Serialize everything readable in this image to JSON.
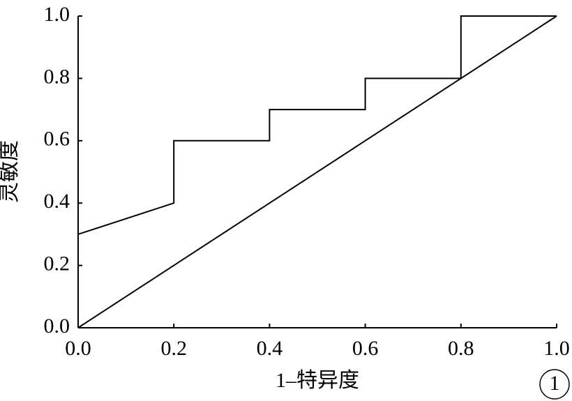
{
  "chart_data": {
    "type": "line",
    "x_label": "1–特异度",
    "y_label": "灵敏度",
    "panel_label": "1",
    "series": [
      {
        "color": "#000000",
        "x": [
          0,
          0.2,
          0.2,
          0.4,
          0.4,
          0.6,
          0.6,
          0.8,
          0.8,
          1
        ],
        "values": [
          0.3,
          0.4,
          0.6,
          0.6,
          0.7,
          0.7,
          0.8,
          0.8,
          1,
          1
        ]
      },
      {
        "color": "#000000",
        "x": [
          0,
          1
        ],
        "values": [
          0,
          1
        ]
      }
    ],
    "xlim": [
      0,
      1
    ],
    "ylim": [
      0,
      1
    ],
    "xticks": [
      {
        "value": 0,
        "label": "0.0"
      },
      0.2,
      0.4,
      0.6,
      0.8,
      {
        "value": 1,
        "label": "1.0"
      }
    ],
    "yticks": [
      {
        "value": 0,
        "label": "0.0"
      },
      0.2,
      0.4,
      0.6,
      0.8,
      {
        "value": 1,
        "label": "1.0"
      }
    ],
    "grid": false
  }
}
